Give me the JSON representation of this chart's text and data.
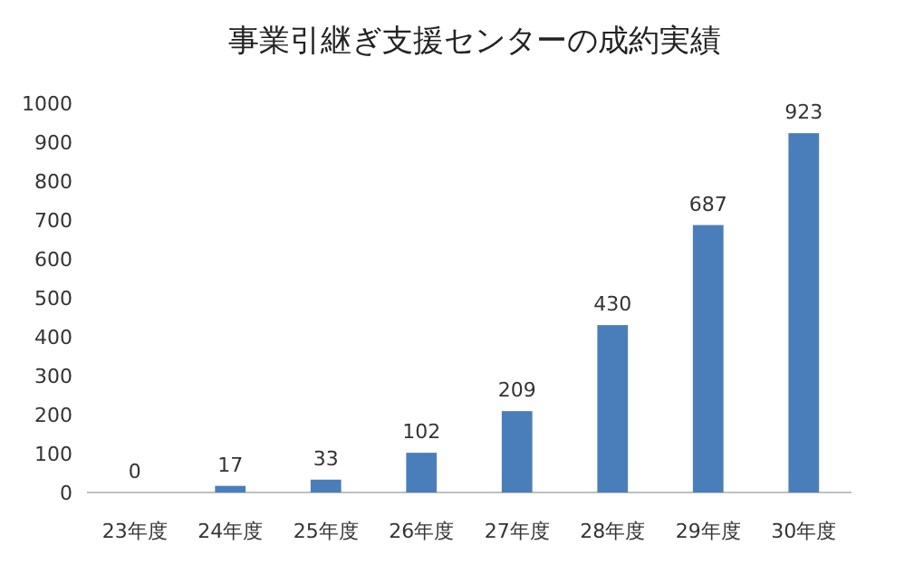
{
  "chart_data": {
    "type": "bar",
    "title": "事業引継ぎ支援センターの成約実績",
    "categories": [
      "23年度",
      "24年度",
      "25年度",
      "26年度",
      "27年度",
      "28年度",
      "29年度",
      "30年度"
    ],
    "values": [
      0,
      17,
      33,
      102,
      209,
      430,
      687,
      923
    ],
    "color": "#4a7ebb",
    "ylim": [
      0,
      1000
    ],
    "yticks": [
      0,
      100,
      200,
      300,
      400,
      500,
      600,
      700,
      800,
      900,
      1000
    ],
    "grid": false,
    "data_labels": true
  }
}
